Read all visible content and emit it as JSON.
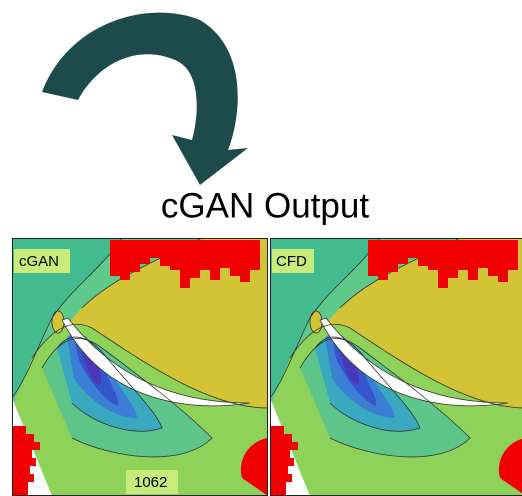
{
  "title": "cGAN Output",
  "panels": [
    {
      "label": "cGAN",
      "annotation": "1062"
    },
    {
      "label": "CFD"
    }
  ]
}
